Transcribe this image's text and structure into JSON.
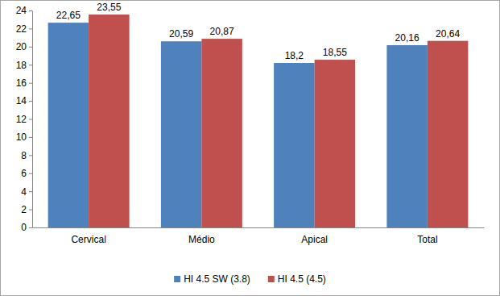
{
  "chart_data": {
    "type": "bar",
    "categories": [
      "Cervical",
      "Médio",
      "Apical",
      "Total"
    ],
    "series": [
      {
        "name": "HI 4.5 SW (3.8)",
        "color": "#4f81bd",
        "values": [
          22.65,
          20.59,
          18.2,
          20.16
        ],
        "value_labels": [
          "22,65",
          "20,59",
          "18,2",
          "20,16"
        ]
      },
      {
        "name": "HI 4.5 (4.5)",
        "color": "#c0504d",
        "values": [
          23.55,
          20.87,
          18.55,
          20.64
        ],
        "value_labels": [
          "23,55",
          "20,87",
          "18,55",
          "20,64"
        ]
      }
    ],
    "ylim": [
      0,
      24
    ],
    "yticks": [
      0,
      2,
      4,
      6,
      8,
      10,
      12,
      14,
      16,
      18,
      20,
      22,
      24
    ],
    "grid": false,
    "legend": "bottom",
    "data_labels": true
  }
}
